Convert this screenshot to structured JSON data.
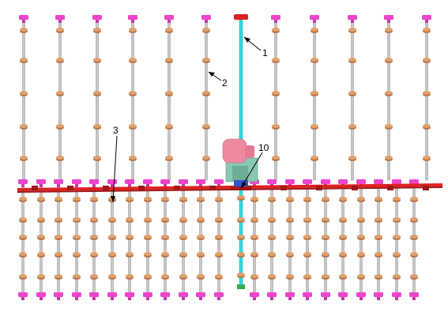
{
  "callouts": {
    "c1": "1",
    "c2": "2",
    "c3": "3",
    "c10": "10"
  },
  "colors": {
    "background": "#ffffff",
    "rod": "#c8c8c8",
    "rod_outline": "#8f8f8f",
    "hanger_disc": "#e0a06a",
    "hanger_disc_dark": "#b8734a",
    "top_fixture": "#ee44cc",
    "beam": "#dd2222",
    "beam_dark": "#a01818",
    "center_shaft": "#33d6e0",
    "motor": "#ee8aa0",
    "bracket": "#88c7b0",
    "blue_part": "#3355cc",
    "green_part": "#33aa44",
    "arrow": "#000000"
  }
}
